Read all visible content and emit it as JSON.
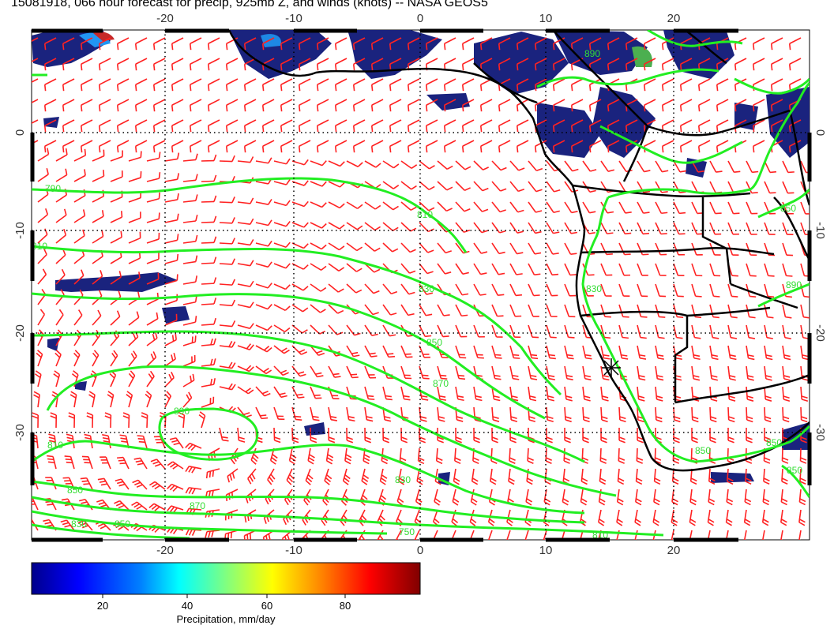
{
  "title": "15081918, 066 hour forecast for precip, 925mb Z, and winds (knots) -- NASA GEOS5",
  "map": {
    "lon_ticks": [
      "-20",
      "-10",
      "0",
      "10",
      "20"
    ],
    "lat_ticks": [
      "0",
      "-10",
      "-20",
      "-30"
    ],
    "contour_labels": [
      "790",
      "810",
      "810",
      "830",
      "850",
      "870",
      "890",
      "810",
      "830",
      "850",
      "870",
      "810",
      "830",
      "850",
      "750",
      "850",
      "850",
      "890",
      "850",
      "830",
      "850",
      "890"
    ],
    "colors": {
      "precip_high": "#1a237e",
      "contour": "#22ee22",
      "wind": "#ff2222",
      "coast": "#000000",
      "grid": "#000000"
    },
    "marker": "star-marker"
  },
  "colorbar": {
    "label": "Precipitation, mm/day",
    "ticks": [
      "20",
      "40",
      "60",
      "80"
    ],
    "colors": [
      "#00008b",
      "#0000ff",
      "#0080ff",
      "#00ffff",
      "#80ff80",
      "#ffff00",
      "#ff8000",
      "#ff0000",
      "#800000"
    ]
  }
}
